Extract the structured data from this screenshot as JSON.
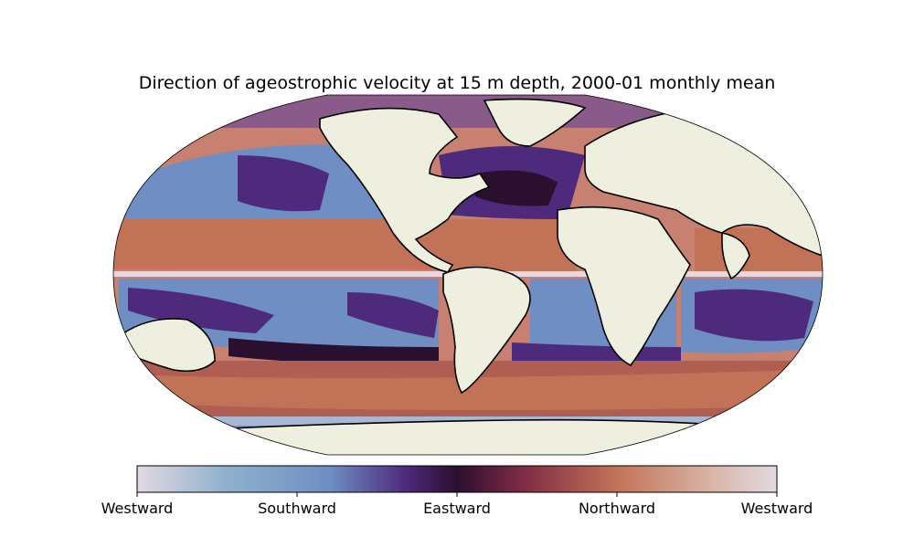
{
  "title": "Direction of ageostrophic velocity at 15 m depth, 2000-01 monthly mean",
  "colorbar": {
    "ticks": [
      "Westward",
      "Southward",
      "Eastward",
      "Northward",
      "Westward"
    ],
    "colors": [
      "#e2d9e2",
      "#6f8fc4",
      "#4d2a7c",
      "#2b0f2f",
      "#7e2a44",
      "#c27357",
      "#d9b6a8",
      "#e2d9e2"
    ]
  },
  "colors": {
    "land": "#efefe0",
    "coast": "#000000",
    "ocean_west": "#e2d9e2",
    "ocean_south": "#6f8fc4",
    "ocean_east": "#2b0f2f",
    "ocean_north": "#c27357"
  }
}
